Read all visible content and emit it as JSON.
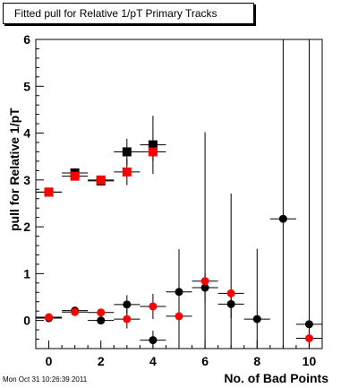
{
  "title": "Fitted pull for Relative 1/pT Primary Tracks",
  "timestamp": "Mon Oct 31 10:26:39 2011",
  "chart_data": {
    "type": "scatter",
    "title": "Fitted pull for Relative 1/pT Primary Tracks",
    "xlabel": "No. of Bad Points",
    "ylabel": "pull for Relative 1/pT",
    "xlim": [
      -0.5,
      10.5
    ],
    "ylim": [
      -0.6,
      6.0
    ],
    "x_ticks": [
      "0",
      "2",
      "4",
      "6",
      "8",
      "10"
    ],
    "y_ticks": [
      "0",
      "1",
      "2",
      "3",
      "4",
      "5",
      "6"
    ],
    "grid": false,
    "series": [
      {
        "marker": "square",
        "color": "#000000",
        "points": [
          {
            "x": 0,
            "y": 2.74,
            "err": 0.05
          },
          {
            "x": 1,
            "y": 3.15,
            "err": 0.05
          },
          {
            "x": 2,
            "y": 2.98,
            "err": 0.06
          },
          {
            "x": 3,
            "y": 3.6,
            "err": 0.28
          },
          {
            "x": 4,
            "y": 3.75,
            "err": 0.62
          }
        ]
      },
      {
        "marker": "square",
        "color": "#ff0000",
        "points": [
          {
            "x": 0,
            "y": 2.74,
            "err": 0.05
          },
          {
            "x": 1,
            "y": 3.08,
            "err": 0.05
          },
          {
            "x": 2,
            "y": 3.0,
            "err": 0.06
          },
          {
            "x": 3,
            "y": 3.17,
            "err": 0.28
          },
          {
            "x": 4,
            "y": 3.6,
            "err": 0.2
          }
        ]
      },
      {
        "marker": "circle",
        "color": "#000000",
        "points": [
          {
            "x": 0,
            "y": 0.05,
            "err": 0.04
          },
          {
            "x": 1,
            "y": 0.21,
            "err": 0.05
          },
          {
            "x": 2,
            "y": 0.0,
            "err": 0.07
          },
          {
            "x": 3,
            "y": 0.34,
            "err": 0.2
          },
          {
            "x": 4,
            "y": -0.42,
            "err": 0.2
          },
          {
            "x": 5,
            "y": 0.61,
            "err": 0.25
          },
          {
            "x": 6,
            "y": 0.7,
            "err": 0.3
          },
          {
            "x": 7,
            "y": 0.35,
            "err": 0.3
          },
          {
            "x": 8,
            "y": 0.03,
            "err": 1.5
          },
          {
            "x": 9,
            "y": 2.17,
            "err": 3.83
          },
          {
            "x": 10,
            "y": -0.08,
            "err": 6.08
          }
        ]
      },
      {
        "marker": "circle",
        "color": "#ff0000",
        "points": [
          {
            "x": 0,
            "y": 0.07,
            "err": 0.04
          },
          {
            "x": 1,
            "y": 0.18,
            "err": 0.05
          },
          {
            "x": 2,
            "y": 0.17,
            "err": 0.07
          },
          {
            "x": 3,
            "y": 0.03,
            "err": 0.2
          },
          {
            "x": 4,
            "y": 0.3,
            "err": 0.27
          },
          {
            "x": 5,
            "y": 0.09,
            "err": 1.43
          },
          {
            "x": 6,
            "y": 0.84,
            "err": 3.18
          },
          {
            "x": 7,
            "y": 0.58,
            "err": 2.13
          },
          {
            "x": 10,
            "y": -0.38,
            "err": 0.2
          }
        ]
      }
    ]
  }
}
